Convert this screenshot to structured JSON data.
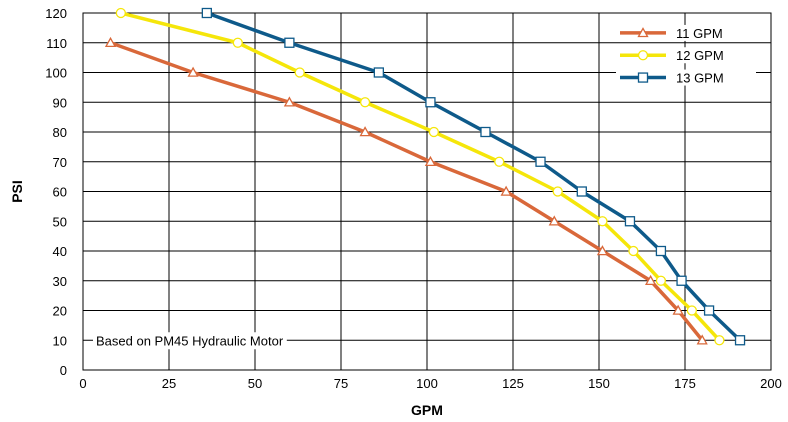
{
  "chart_data": {
    "type": "line",
    "title": "",
    "xlabel": "GPM",
    "ylabel": "PSI",
    "xlim": [
      0,
      200
    ],
    "ylim": [
      0,
      120
    ],
    "xticks": [
      0,
      25,
      50,
      75,
      100,
      125,
      150,
      175,
      200
    ],
    "yticks": [
      0,
      10,
      20,
      30,
      40,
      50,
      60,
      70,
      80,
      90,
      100,
      110,
      120
    ],
    "grid": true,
    "legend_position": "top-right",
    "annotation": "Based on PM45 Hydraulic Motor",
    "series": [
      {
        "name": "11 GPM",
        "color": "#d9683a",
        "marker": "triangle",
        "points": [
          [
            8,
            110
          ],
          [
            32,
            100
          ],
          [
            60,
            90
          ],
          [
            82,
            80
          ],
          [
            101,
            70
          ],
          [
            123,
            60
          ],
          [
            137,
            50
          ],
          [
            151,
            40
          ],
          [
            165,
            30
          ],
          [
            173,
            20
          ],
          [
            180,
            10
          ]
        ]
      },
      {
        "name": "12 GPM",
        "color": "#f5e60a",
        "marker": "circle",
        "points": [
          [
            11,
            120
          ],
          [
            45,
            110
          ],
          [
            63,
            100
          ],
          [
            82,
            90
          ],
          [
            102,
            80
          ],
          [
            121,
            70
          ],
          [
            138,
            60
          ],
          [
            151,
            50
          ],
          [
            160,
            40
          ],
          [
            168,
            30
          ],
          [
            177,
            20
          ],
          [
            185,
            10
          ]
        ]
      },
      {
        "name": "13 GPM",
        "color": "#0e5a8a",
        "marker": "square",
        "points": [
          [
            36,
            120
          ],
          [
            60,
            110
          ],
          [
            86,
            100
          ],
          [
            101,
            90
          ],
          [
            117,
            80
          ],
          [
            133,
            70
          ],
          [
            145,
            60
          ],
          [
            159,
            50
          ],
          [
            168,
            40
          ],
          [
            174,
            30
          ],
          [
            182,
            20
          ],
          [
            191,
            10
          ]
        ]
      }
    ]
  }
}
